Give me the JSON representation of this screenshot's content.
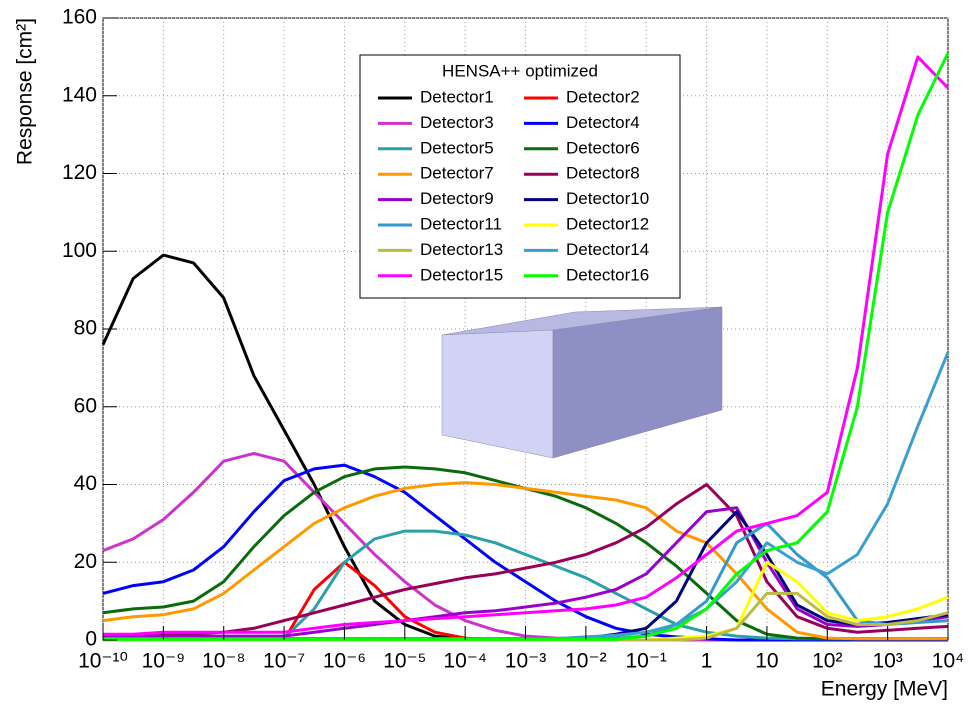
{
  "chart_data": {
    "type": "line",
    "xlabel": "Energy [MeV]",
    "ylabel": "Response [cm²]",
    "legend_title": "HENSA++ optimized",
    "xscale": "log",
    "grid": true,
    "xlim": [
      1e-10,
      10000
    ],
    "ylim": [
      0,
      160
    ],
    "yticks": [
      0,
      20,
      40,
      60,
      80,
      100,
      120,
      140,
      160
    ],
    "xticks": [
      {
        "value": 1e-10,
        "label": "10⁻¹⁰"
      },
      {
        "value": 1e-09,
        "label": "10⁻⁹"
      },
      {
        "value": 1e-08,
        "label": "10⁻⁸"
      },
      {
        "value": 1e-07,
        "label": "10⁻⁷"
      },
      {
        "value": 1e-06,
        "label": "10⁻⁶"
      },
      {
        "value": 1e-05,
        "label": "10⁻⁵"
      },
      {
        "value": 0.0001,
        "label": "10⁻⁴"
      },
      {
        "value": 0.001,
        "label": "10⁻³"
      },
      {
        "value": 0.01,
        "label": "10⁻²"
      },
      {
        "value": 0.1,
        "label": "10⁻¹"
      },
      1,
      10,
      {
        "value": 100,
        "label": "10²"
      },
      {
        "value": 1000,
        "label": "10³"
      },
      {
        "value": 10000,
        "label": "10⁴"
      }
    ],
    "x": [
      1e-10,
      3.16e-10,
      1e-09,
      3.16e-09,
      1e-08,
      3.16e-08,
      1e-07,
      3.16e-07,
      1e-06,
      3.16e-06,
      1e-05,
      3.16e-05,
      0.0001,
      0.000316,
      0.001,
      0.00316,
      0.01,
      0.0316,
      0.1,
      0.316,
      1,
      3.16,
      10,
      31.6,
      100,
      316,
      1000,
      3162,
      10000
    ],
    "series": [
      {
        "name": "Detector1",
        "color": "#000000",
        "values": [
          76,
          93,
          99,
          97,
          88,
          68,
          54,
          40,
          24,
          10,
          4,
          1,
          0.3,
          0,
          0,
          0,
          0,
          0,
          0,
          0,
          0,
          0,
          0,
          0,
          0,
          0,
          0,
          0,
          0
        ]
      },
      {
        "name": "Detector2",
        "color": "#ff0000",
        "values": [
          0,
          0,
          0,
          0,
          0,
          0,
          0,
          13,
          20,
          14,
          6,
          2,
          0.5,
          0,
          0,
          0,
          0,
          0,
          0,
          0,
          0,
          0,
          0,
          0,
          0,
          0,
          0,
          0,
          0
        ]
      },
      {
        "name": "Detector3",
        "color": "#cc33cc",
        "values": [
          23,
          26,
          31,
          38,
          46,
          48,
          46,
          38,
          30,
          22,
          15,
          9,
          5,
          2.5,
          1,
          0.5,
          0.3,
          0,
          0,
          0,
          0,
          0,
          0,
          0,
          0,
          0,
          0,
          0,
          0
        ]
      },
      {
        "name": "Detector4",
        "color": "#0000ff",
        "values": [
          12,
          14,
          15,
          18,
          24,
          33,
          41,
          44,
          45,
          42,
          38,
          32,
          26,
          20,
          15,
          10,
          6,
          3,
          1.5,
          0.8,
          0.3,
          0,
          0,
          0,
          0,
          0,
          0,
          0,
          0
        ]
      },
      {
        "name": "Detector5",
        "color": "#2aa0a8",
        "values": [
          0.5,
          0.5,
          0.5,
          0.5,
          0.5,
          0.5,
          0.5,
          8,
          20,
          26,
          28,
          28,
          27,
          25,
          22,
          19,
          16,
          12,
          8,
          4,
          2,
          1,
          0.5,
          0.3,
          0.3,
          0.3,
          0.3,
          0.3,
          0.3
        ]
      },
      {
        "name": "Detector6",
        "color": "#0a6b0a",
        "values": [
          7,
          8,
          8.5,
          10,
          15,
          24,
          32,
          38,
          42,
          44,
          44.5,
          44,
          43,
          41,
          39,
          37,
          34,
          30,
          25,
          19,
          12,
          5,
          1.5,
          0.5,
          0.3,
          0.3,
          0.3,
          0.3,
          0.3
        ]
      },
      {
        "name": "Detector7",
        "color": "#ff9900",
        "values": [
          5,
          6,
          6.5,
          8,
          12,
          18,
          24,
          30,
          34,
          37,
          39,
          40,
          40.5,
          40,
          39,
          38,
          37,
          36,
          34,
          28,
          25,
          17,
          8,
          2,
          0.5,
          0.3,
          0.3,
          0.3,
          0.3
        ]
      },
      {
        "name": "Detector8",
        "color": "#99005a",
        "values": [
          1,
          1.2,
          1.4,
          1.6,
          2,
          3,
          5,
          7,
          9,
          11,
          13,
          14.5,
          16,
          17,
          18.5,
          20,
          22,
          25,
          29,
          35,
          40,
          32,
          15,
          6,
          3,
          2,
          2.5,
          3,
          3.5
        ]
      },
      {
        "name": "Detector9",
        "color": "#9900cc",
        "values": [
          1,
          1,
          1,
          1,
          1,
          1,
          1,
          2,
          3,
          4,
          5,
          6,
          7,
          7.5,
          8.5,
          9.5,
          11,
          13,
          17,
          25,
          33,
          34,
          20,
          8,
          4,
          3.5,
          4,
          5,
          6
        ]
      },
      {
        "name": "Detector10",
        "color": "#000080",
        "values": [
          0.3,
          0.3,
          0.3,
          0.3,
          0.3,
          0.3,
          0.3,
          0.3,
          0.3,
          0.3,
          0.3,
          0.3,
          0.3,
          0.3,
          0.3,
          0.3,
          0.5,
          1.5,
          3,
          10,
          25,
          33,
          22,
          9,
          5,
          4,
          4.5,
          5.5,
          6.5
        ]
      },
      {
        "name": "Detector11",
        "color": "#3399cc",
        "values": [
          0.3,
          0.3,
          0.3,
          0.3,
          0.3,
          0.3,
          0.3,
          0.3,
          0.3,
          0.3,
          0.3,
          0.3,
          0.3,
          0.3,
          0.3,
          0.3,
          0.3,
          0.5,
          1,
          4,
          10,
          25,
          30,
          22,
          16,
          5,
          4,
          4.5,
          5
        ]
      },
      {
        "name": "Detector12",
        "color": "#ffff00",
        "values": [
          0,
          0,
          0,
          0,
          0,
          0,
          0,
          0,
          0,
          0,
          0,
          0,
          0,
          0,
          0,
          0,
          0,
          0,
          0,
          0.5,
          1,
          3,
          20,
          15,
          7,
          5,
          6,
          8,
          11
        ]
      },
      {
        "name": "Detector13",
        "color": "#bbbb44",
        "values": [
          0,
          0,
          0,
          0,
          0,
          0,
          0,
          0,
          0,
          0,
          0,
          0,
          0,
          0,
          0,
          0,
          0,
          0,
          0,
          0,
          0.5,
          3,
          12,
          12,
          6,
          4,
          4,
          5,
          7
        ]
      },
      {
        "name": "Detector14",
        "color": "#3b9fd1",
        "values": [
          0.3,
          0.3,
          0.3,
          0.3,
          0.3,
          0.3,
          0.3,
          0.3,
          0.3,
          0.3,
          0.3,
          0.3,
          0.3,
          0.3,
          0.3,
          0.3,
          0.8,
          1.2,
          2,
          4,
          8,
          15,
          25,
          20,
          17,
          22,
          35,
          55,
          74
        ]
      },
      {
        "name": "Detector15",
        "color": "#ff00ff",
        "values": [
          1.5,
          1.5,
          2,
          2,
          2,
          2,
          2,
          3,
          4,
          4.5,
          5,
          5.5,
          6,
          6.5,
          7,
          7.5,
          8,
          9,
          11,
          16,
          22,
          28,
          30,
          32,
          38,
          70,
          125,
          150,
          142
        ]
      },
      {
        "name": "Detector16",
        "color": "#00ff00",
        "values": [
          0.2,
          0.2,
          0.2,
          0.2,
          0.2,
          0.2,
          0.2,
          0.2,
          0.2,
          0.2,
          0.2,
          0.2,
          0.2,
          0.2,
          0.2,
          0.2,
          0.2,
          0.2,
          1,
          3,
          8,
          17,
          23,
          25,
          33,
          60,
          110,
          135,
          151
        ]
      }
    ]
  }
}
